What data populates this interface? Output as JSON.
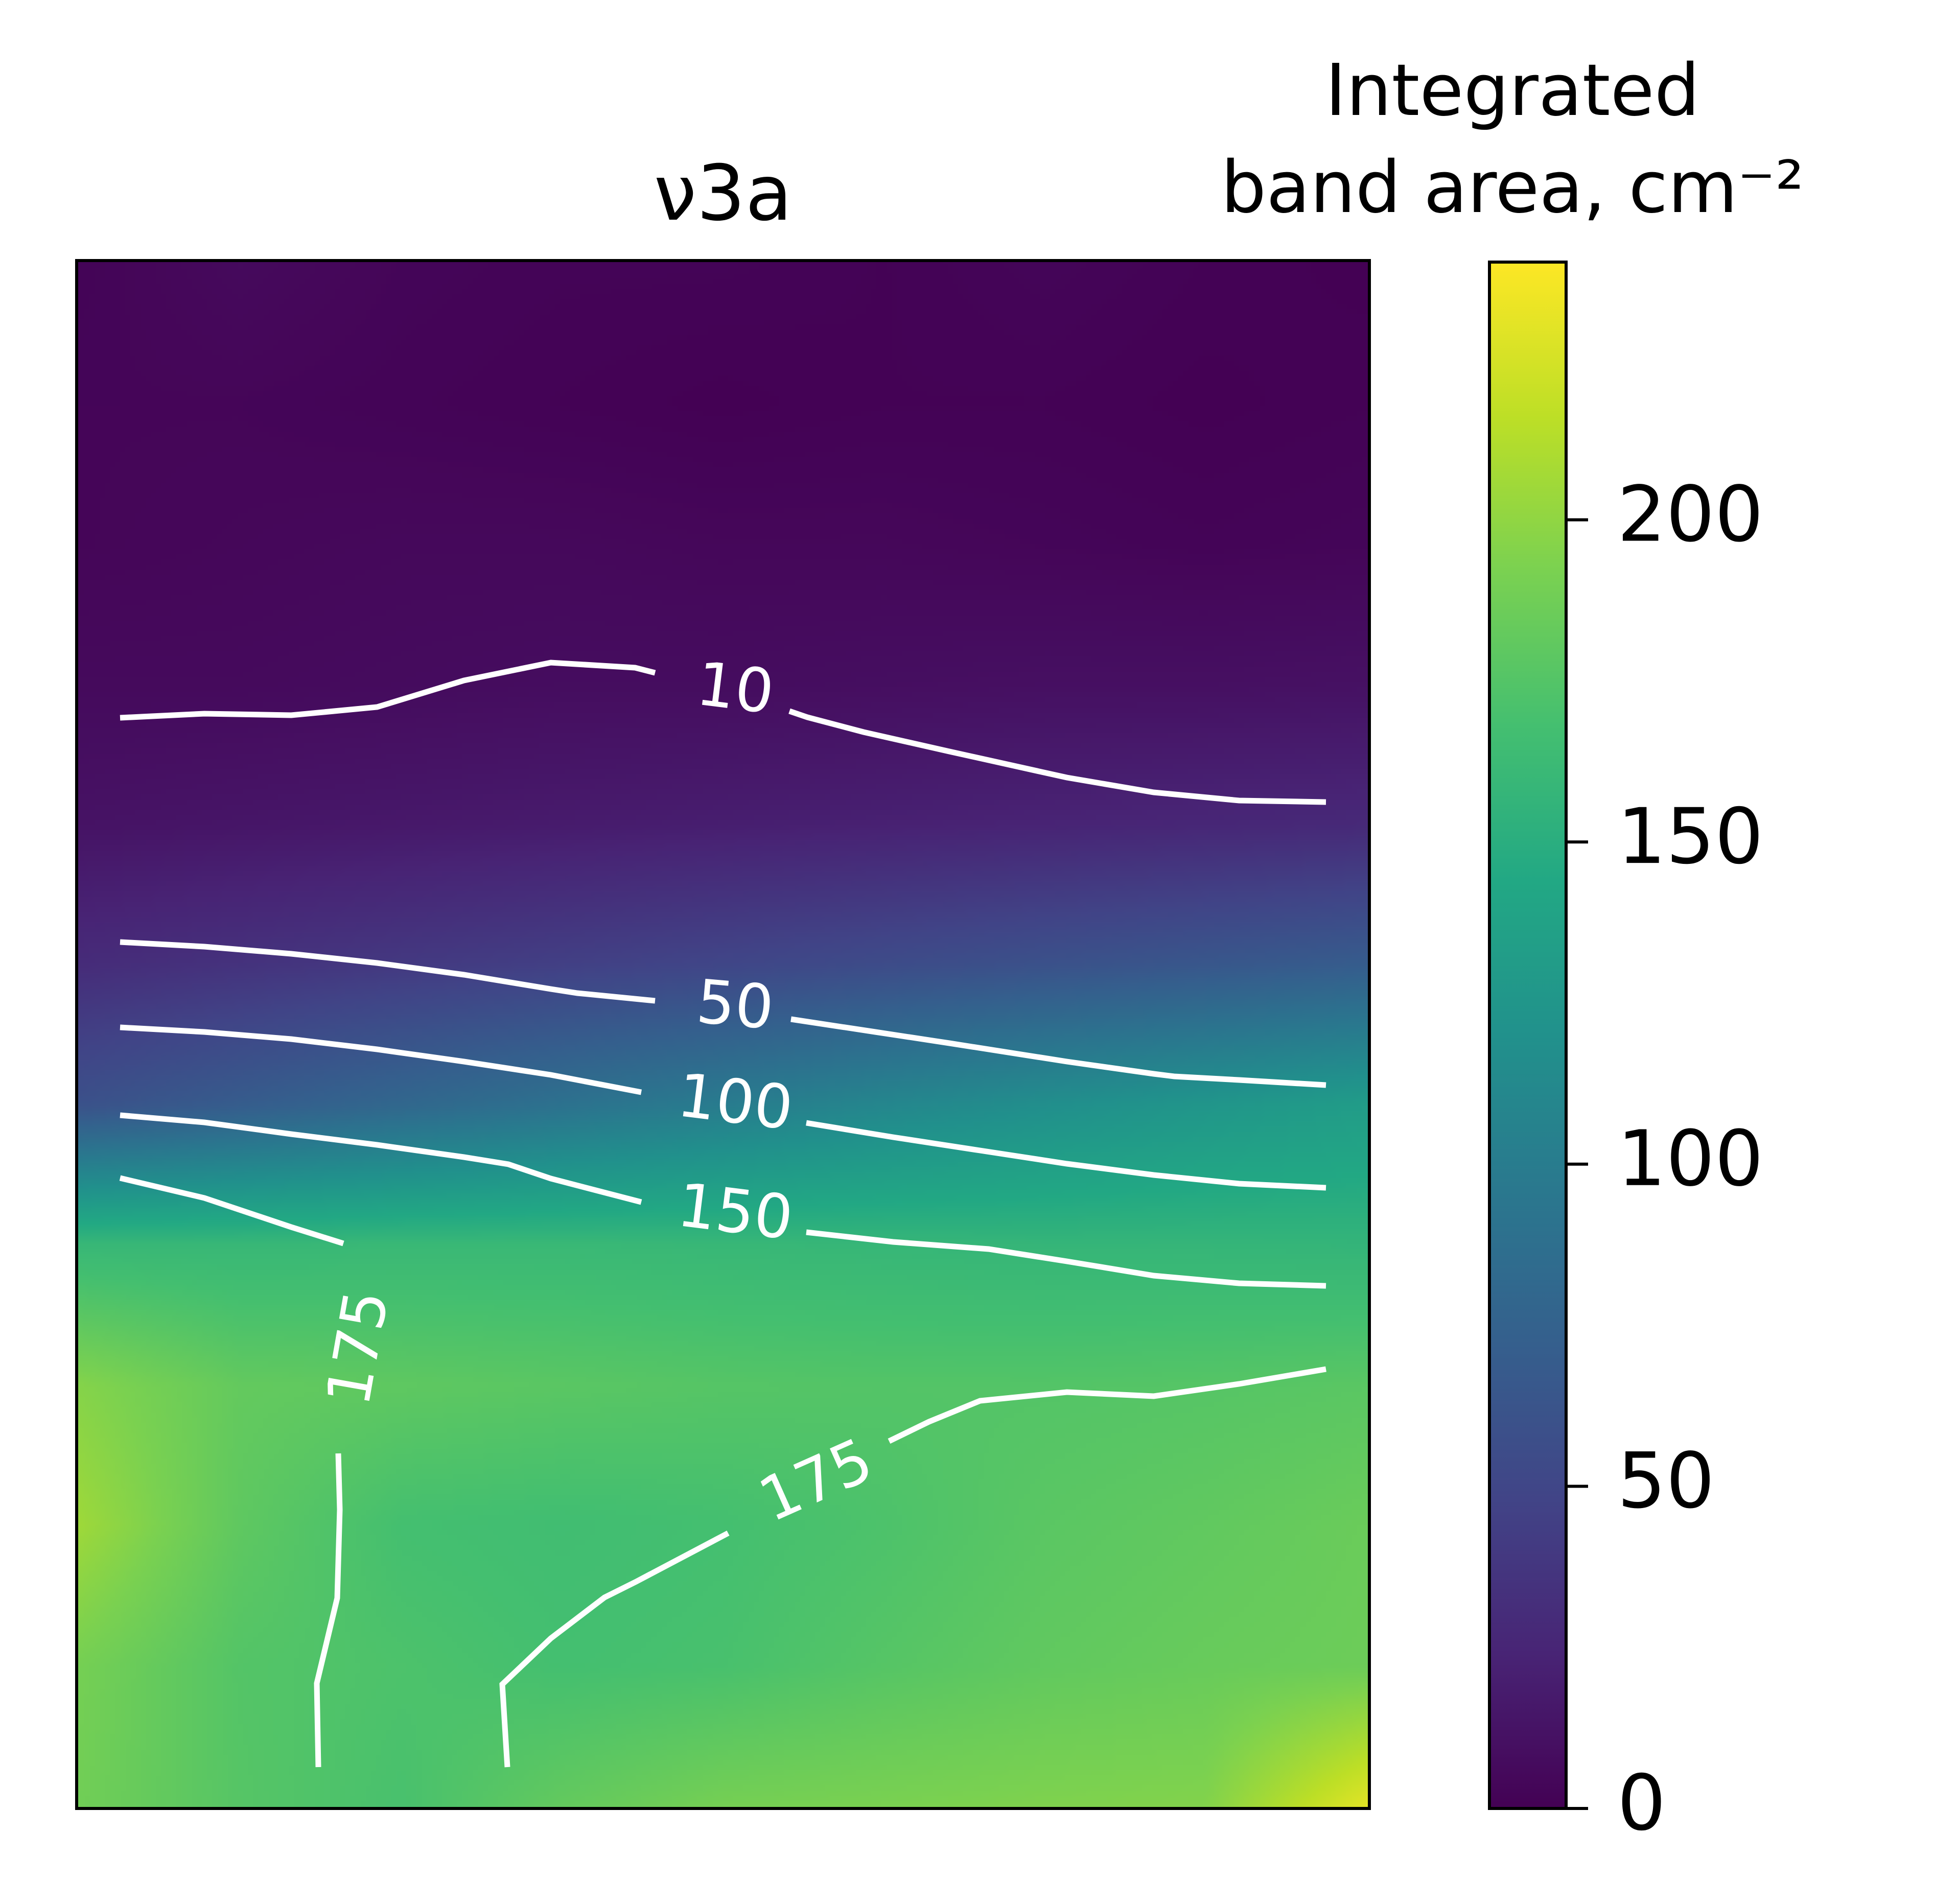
{
  "chart_data": {
    "type": "heatmap",
    "title": "ν3a",
    "colormap": "viridis",
    "colorbar": {
      "label_lines": [
        "Integrated",
        "band area, cm⁻²"
      ],
      "range": [
        0,
        240
      ],
      "ticks": [
        0,
        50,
        100,
        150,
        200
      ],
      "tick_labels": [
        "0",
        "50",
        "100",
        "150",
        "200"
      ]
    },
    "axes": {
      "x_ticks": [],
      "y_ticks": []
    },
    "grid": [
      [
        2,
        6,
        3,
        2,
        2,
        1,
        3,
        1,
        0
      ],
      [
        3,
        3,
        2,
        1,
        0,
        1,
        1,
        0,
        1
      ],
      [
        3,
        4,
        5,
        5,
        4,
        4,
        3,
        2,
        3
      ],
      [
        6,
        6,
        7,
        8,
        8,
        9,
        10,
        10,
        11
      ],
      [
        12,
        14,
        16,
        18,
        20,
        22,
        24,
        26,
        28
      ],
      [
        30,
        35,
        40,
        45,
        50,
        55,
        60,
        65,
        70
      ],
      [
        60,
        70,
        80,
        90,
        100,
        110,
        118,
        125,
        132
      ],
      [
        160,
        160,
        161,
        161,
        160,
        159,
        158,
        158,
        157
      ],
      [
        196,
        182,
        180,
        178,
        176,
        175,
        175,
        176,
        178
      ],
      [
        205,
        180,
        168,
        166,
        168,
        172,
        178,
        181,
        185
      ],
      [
        190,
        175,
        172,
        168,
        170,
        176,
        181,
        184,
        186
      ],
      [
        188,
        176,
        170,
        182,
        190,
        192,
        194,
        195,
        230
      ]
    ],
    "contours": [
      {
        "level": 10,
        "label": "10"
      },
      {
        "level": 50,
        "label": "50"
      },
      {
        "level": 100,
        "label": "100"
      },
      {
        "level": 150,
        "label": "150"
      },
      {
        "level": 175,
        "label": "175"
      },
      {
        "level": 175,
        "label": "175"
      }
    ]
  }
}
